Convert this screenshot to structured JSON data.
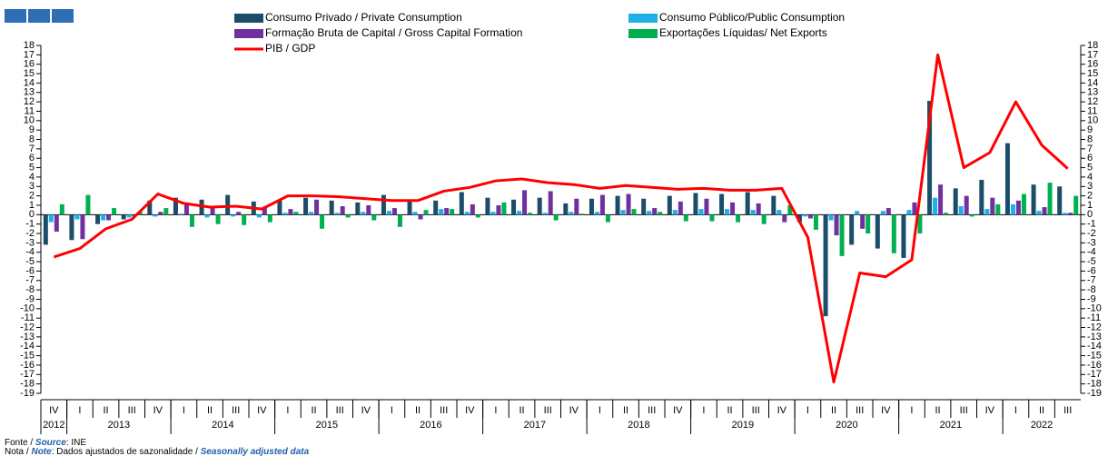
{
  "chart_data": {
    "type": "bar",
    "categories": [
      "IV",
      "I",
      "II",
      "III",
      "IV",
      "I",
      "II",
      "III",
      "IV",
      "I",
      "II",
      "III",
      "IV",
      "I",
      "II",
      "III",
      "IV",
      "I",
      "II",
      "III",
      "IV",
      "I",
      "II",
      "III",
      "IV",
      "I",
      "II",
      "III",
      "IV",
      "I",
      "II",
      "III",
      "IV",
      "I",
      "II",
      "III",
      "IV",
      "I",
      "II",
      "III"
    ],
    "years": [
      "2012",
      "2013",
      "2014",
      "2015",
      "2016",
      "2017",
      "2018",
      "2019",
      "2020",
      "2021",
      "2022"
    ],
    "series": [
      {
        "name": "Consumo Privado / Private Consumption",
        "type": "bar",
        "color": "#1b4d68",
        "values": [
          -3.2,
          -2.7,
          -1.0,
          -0.5,
          1.5,
          1.8,
          1.6,
          2.1,
          1.4,
          1.5,
          1.8,
          1.5,
          1.3,
          2.1,
          1.5,
          1.5,
          2.4,
          1.8,
          1.6,
          1.8,
          1.2,
          1.7,
          2.0,
          1.7,
          2.0,
          2.3,
          2.2,
          2.4,
          2.0,
          -0.8,
          -10.8,
          -3.2,
          -3.6,
          -4.6,
          12.1,
          2.8,
          3.7,
          7.6,
          3.2,
          3.0
        ]
      },
      {
        "name": "Consumo Público/Public Consumption",
        "type": "bar",
        "color": "#1fb0ea",
        "values": [
          -0.8,
          -0.5,
          -0.6,
          -0.3,
          -0.2,
          0.1,
          -0.3,
          -0.2,
          -0.3,
          0.2,
          0.3,
          0.2,
          0.3,
          0.4,
          0.3,
          0.6,
          0.3,
          0.3,
          0.4,
          0.2,
          0.3,
          0.3,
          0.5,
          0.4,
          0.5,
          0.6,
          0.6,
          0.5,
          0.5,
          -0.2,
          -0.6,
          0.4,
          0.4,
          0.5,
          1.8,
          0.9,
          0.6,
          1.1,
          0.4,
          0.2
        ]
      },
      {
        "name": "Formação Bruta de Capital / Gross Capital Formation",
        "type": "bar",
        "color": "#7030a0",
        "values": [
          -1.8,
          -2.6,
          -0.6,
          -0.2,
          0.3,
          1.3,
          0.8,
          0.3,
          0.8,
          0.6,
          1.6,
          0.9,
          1.0,
          0.7,
          -0.5,
          0.7,
          1.1,
          1.0,
          2.6,
          2.5,
          1.7,
          2.1,
          2.2,
          0.7,
          1.4,
          1.7,
          1.3,
          1.2,
          -0.8,
          -0.4,
          -2.2,
          -1.5,
          0.7,
          1.3,
          3.2,
          2.0,
          1.8,
          1.5,
          0.8,
          0.2
        ]
      },
      {
        "name": "Exportações Líquidas/ Net Exports",
        "type": "bar",
        "color": "#00b050",
        "values": [
          1.1,
          2.1,
          0.7,
          0.3,
          0.7,
          -1.3,
          -1.0,
          -1.1,
          -0.8,
          0.3,
          -1.5,
          -0.3,
          -0.6,
          -1.3,
          0.5,
          0.6,
          -0.3,
          1.3,
          0.2,
          -0.6,
          0.1,
          -0.8,
          0.6,
          0.3,
          -0.7,
          -0.7,
          -0.8,
          -1.0,
          1.0,
          -1.6,
          -4.4,
          -2.0,
          -4.1,
          -2.0,
          0.2,
          -0.2,
          1.1,
          2.2,
          3.4,
          2.0
        ]
      },
      {
        "name": "PIB / GDP",
        "type": "line",
        "color": "#ff0000",
        "values": [
          -4.5,
          -3.6,
          -1.5,
          -0.5,
          2.2,
          1.2,
          0.8,
          0.9,
          0.6,
          2.0,
          2.0,
          1.9,
          1.7,
          1.5,
          1.5,
          2.5,
          2.9,
          3.6,
          3.8,
          3.4,
          3.2,
          2.8,
          3.1,
          2.9,
          2.7,
          2.8,
          2.6,
          2.6,
          2.8,
          -2.4,
          -17.8,
          -6.2,
          -6.6,
          -4.8,
          17.0,
          5.0,
          6.6,
          12.0,
          7.4,
          4.9
        ]
      }
    ],
    "ylim": [
      -19,
      18
    ],
    "yticks": [
      -19,
      -18,
      -17,
      -16,
      -15,
      -14,
      -13,
      -12,
      -11,
      -10,
      -9,
      -8,
      -7,
      -6,
      -5,
      -4,
      -3,
      -2,
      -1,
      0,
      1,
      2,
      3,
      4,
      5,
      6,
      7,
      8,
      9,
      10,
      11,
      12,
      13,
      14,
      15,
      16,
      17,
      18
    ],
    "grid": false,
    "legend": "top",
    "footer": [
      [
        "Fonte / ",
        "Source",
        ":  INE"
      ],
      [
        "Nota / ",
        "Note",
        ": Dados ajustados de sazonalidade / ",
        "Seasonally adjusted data"
      ]
    ]
  }
}
